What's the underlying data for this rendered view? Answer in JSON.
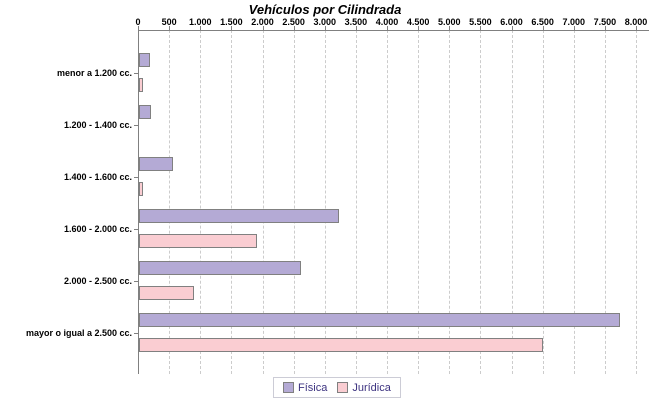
{
  "chart_data": {
    "type": "bar",
    "orientation": "horizontal",
    "title": "Vehículos por Cilindrada",
    "categories": [
      "menor a 1.200 cc.",
      "1.200 - 1.400 cc.",
      "1.400 - 1.600 cc.",
      "1.600 - 2.000 cc.",
      "2.000 - 2.500 cc.",
      "mayor o igual a 2.500 cc."
    ],
    "series": [
      {
        "name": "Física",
        "color": "#b4aad5",
        "border_color": "#808080",
        "values": [
          170,
          200,
          540,
          3220,
          2600,
          7730
        ]
      },
      {
        "name": "Jurídica",
        "color": "#facdd2",
        "border_color": "#808080",
        "values": [
          60,
          0,
          70,
          1890,
          880,
          6490
        ]
      }
    ],
    "xlim": [
      0,
      8000
    ],
    "x_tick_interval": 500,
    "x_tick_labels": [
      "0",
      "500",
      "1.000",
      "1.500",
      "2.000",
      "2.500",
      "3.000",
      "3.500",
      "4.000",
      "4.500",
      "5.000",
      "5.500",
      "6.000",
      "6.500",
      "7.000",
      "7.500",
      "8.000"
    ],
    "grid": "vertical-dashed",
    "legend_position": "bottom-center"
  },
  "styles": {
    "background": "#ffffff",
    "axis_color": "#808080",
    "grid_color": "#cccccc",
    "title_color": "#000000",
    "label_color": "#000000",
    "legend_text_color": "#3d3380",
    "legend_border_color": "#ccccd6"
  }
}
